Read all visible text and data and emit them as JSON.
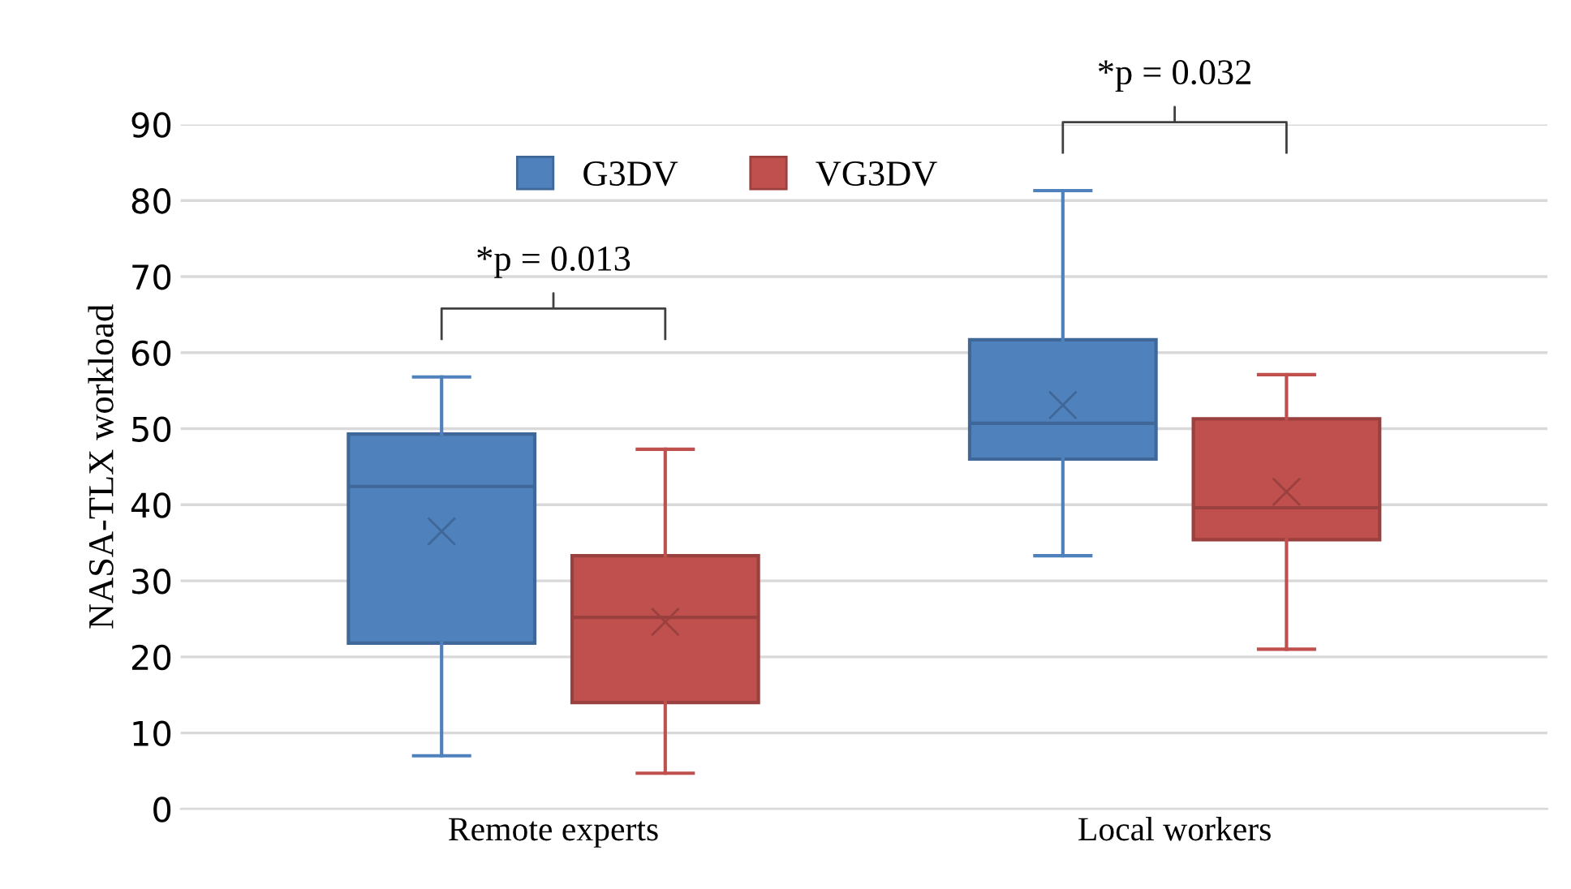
{
  "chart_data": {
    "type": "box",
    "ylabel": "NASA-TLX workload",
    "categories": [
      "Remote experts",
      "Local workers"
    ],
    "series": [
      {
        "name": "G3DV",
        "color": "#4f81bd",
        "boxes": [
          {
            "low": 7.0,
            "q1": 21.8,
            "median": 42.4,
            "q3": 49.3,
            "high": 56.8,
            "mean": 36.5
          },
          {
            "low": 33.3,
            "q1": 46.0,
            "median": 50.7,
            "q3": 61.7,
            "high": 81.3,
            "mean": 53.1
          }
        ]
      },
      {
        "name": "VG3DV",
        "color": "#c0504d",
        "boxes": [
          {
            "low": 4.7,
            "q1": 14.0,
            "median": 25.2,
            "q3": 33.3,
            "high": 47.3,
            "mean": 24.6
          },
          {
            "low": 21.0,
            "q1": 35.4,
            "median": 39.6,
            "q3": 51.3,
            "high": 57.1,
            "mean": 41.7
          }
        ]
      }
    ],
    "ylim": [
      0,
      90
    ],
    "yticks": [
      0,
      10,
      20,
      30,
      40,
      50,
      60,
      70,
      80,
      90
    ],
    "grid": "y",
    "legend": "top",
    "marker": "cross",
    "annotations": [
      "*p = 0.013",
      "*p = 0.032"
    ]
  }
}
